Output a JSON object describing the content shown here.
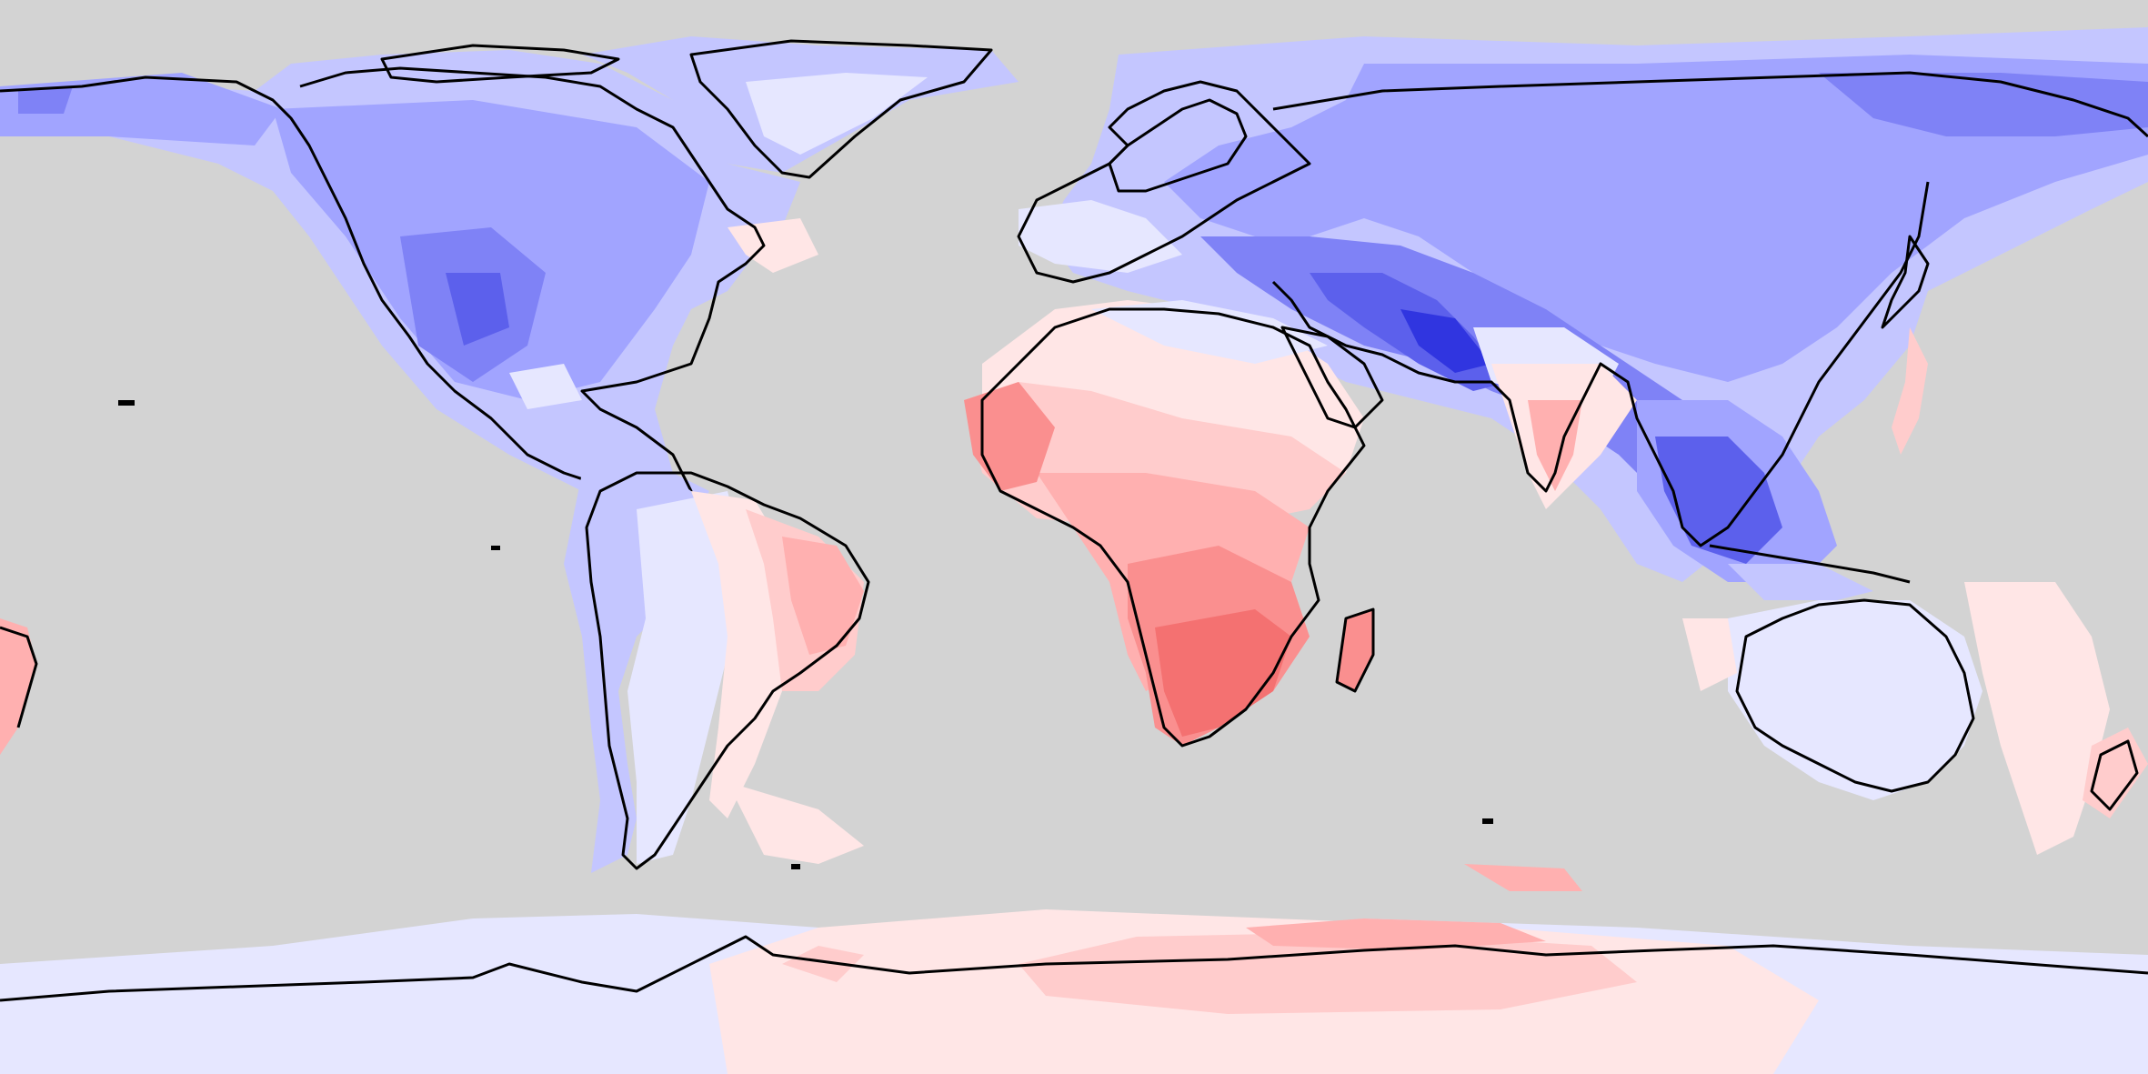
{
  "map": {
    "projection": "equirectangular",
    "extent": {
      "lon": [
        -180,
        180
      ],
      "lat": [
        -90,
        90
      ]
    },
    "colors": {
      "ocean_mask": "#d3d3d3",
      "coastline": "#000000",
      "blue_levels": [
        "#e6e7ff",
        "#c4c6ff",
        "#a1a4ff",
        "#7f82f6",
        "#5c60ec",
        "#3035e0",
        "#0e14d8"
      ],
      "red_levels": [
        "#ffe6e6",
        "#ffcccc",
        "#ffb0b0",
        "#fa8f8f",
        "#f47171",
        "#ef5a5a"
      ]
    },
    "legend": "none",
    "labels": "none"
  }
}
